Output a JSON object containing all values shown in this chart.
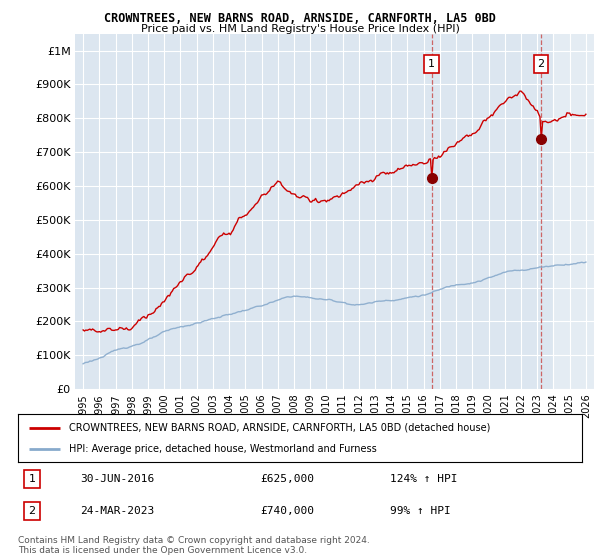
{
  "title": "CROWNTREES, NEW BARNS ROAD, ARNSIDE, CARNFORTH, LA5 0BD",
  "subtitle": "Price paid vs. HM Land Registry's House Price Index (HPI)",
  "legend_red": "CROWNTREES, NEW BARNS ROAD, ARNSIDE, CARNFORTH, LA5 0BD (detached house)",
  "legend_blue": "HPI: Average price, detached house, Westmorland and Furness",
  "sale1_date": "30-JUN-2016",
  "sale1_price": "£625,000",
  "sale1_hpi": "124% ↑ HPI",
  "sale2_date": "24-MAR-2023",
  "sale2_price": "£740,000",
  "sale2_hpi": "99% ↑ HPI",
  "footer": "Contains HM Land Registry data © Crown copyright and database right 2024.\nThis data is licensed under the Open Government Licence v3.0.",
  "red_color": "#cc0000",
  "blue_color": "#88aacc",
  "dashed_color": "#cc6666",
  "sale1_x": 2016.5,
  "sale1_y": 625000,
  "sale2_x": 2023.23,
  "sale2_y": 740000,
  "ylim": [
    0,
    1050000
  ],
  "xlim": [
    1994.5,
    2026.5
  ],
  "yticks": [
    0,
    100000,
    200000,
    300000,
    400000,
    500000,
    600000,
    700000,
    800000,
    900000,
    1000000
  ],
  "ytick_labels": [
    "£0",
    "£100K",
    "£200K",
    "£300K",
    "£400K",
    "£500K",
    "£600K",
    "£700K",
    "£800K",
    "£900K",
    "£1M"
  ],
  "background_color": "#dce6f0",
  "chart_right_bg": "#dce6f0"
}
